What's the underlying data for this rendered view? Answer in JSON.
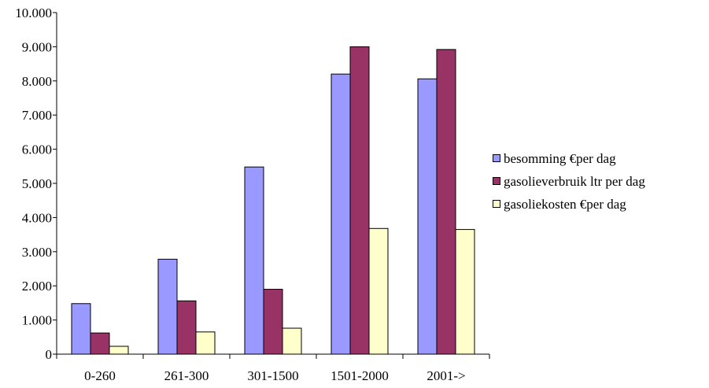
{
  "chart_data": {
    "type": "bar",
    "title": "",
    "xlabel": "",
    "ylabel": "",
    "categories": [
      "0-260",
      "261-300",
      "301-1500",
      "1501-2000",
      "2001->"
    ],
    "ylim": [
      0,
      10000
    ],
    "yticks": [
      0,
      1000,
      2000,
      3000,
      4000,
      5000,
      6000,
      7000,
      8000,
      9000,
      10000
    ],
    "ytick_labels": [
      "0",
      "1.000",
      "2.000",
      "3.000",
      "4.000",
      "5.000",
      "6.000",
      "7.000",
      "8.000",
      "9.000",
      "10.000"
    ],
    "grid": false,
    "legend_position": "right",
    "series": [
      {
        "name": "besomming €per dag",
        "color": "#9999ff",
        "values": [
          1480,
          2780,
          5480,
          8200,
          8060
        ]
      },
      {
        "name": "gasolieverbruik ltr per dag",
        "color": "#993366",
        "values": [
          620,
          1560,
          1900,
          9000,
          8920
        ]
      },
      {
        "name": "gasoliekosten €per dag",
        "color": "#ffffcc",
        "values": [
          230,
          650,
          760,
          3680,
          3650
        ]
      }
    ]
  }
}
